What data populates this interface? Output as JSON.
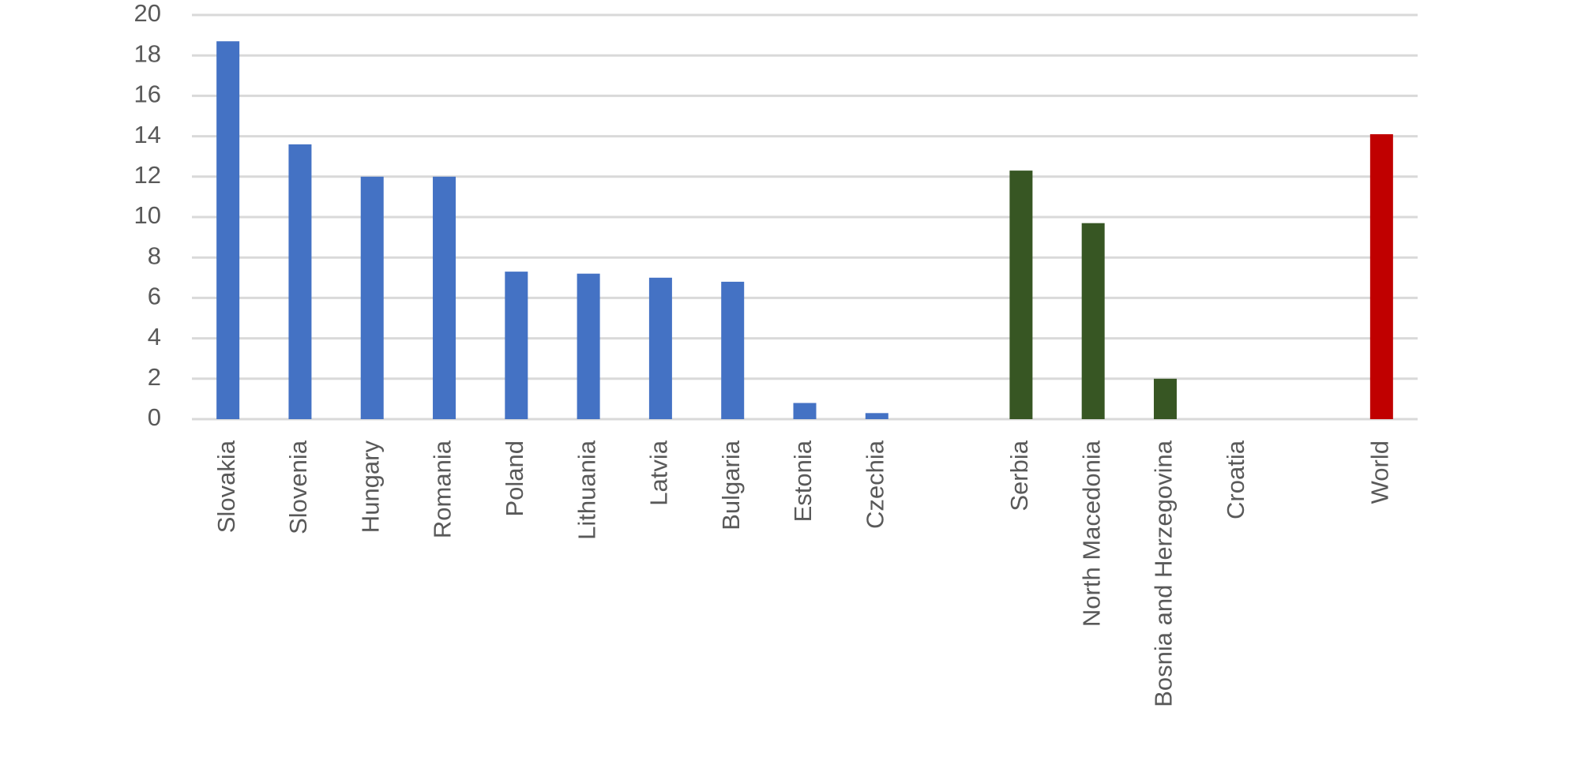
{
  "chart_data": {
    "type": "bar",
    "categories": [
      "Slovakia",
      "Slovenia",
      "Hungary",
      "Romania",
      "Poland",
      "Lithuania",
      "Latvia",
      "Bulgaria",
      "Estonia",
      "Czechia",
      null,
      "Serbia",
      "North Macedonia",
      "Bosnia and Herzegovina",
      "Croatia",
      null,
      "World"
    ],
    "values": [
      18.7,
      13.6,
      12.0,
      12.0,
      7.3,
      7.2,
      7.0,
      6.8,
      0.8,
      0.3,
      null,
      12.3,
      9.7,
      2.0,
      0,
      null,
      14.1
    ],
    "colors": [
      "#4472c4",
      "#4472c4",
      "#4472c4",
      "#4472c4",
      "#4472c4",
      "#4472c4",
      "#4472c4",
      "#4472c4",
      "#4472c4",
      "#4472c4",
      null,
      "#375623",
      "#375623",
      "#375623",
      "#375623",
      null,
      "#c00000"
    ],
    "ylim": [
      0,
      20
    ],
    "yticks": [
      0,
      2,
      4,
      6,
      8,
      10,
      12,
      14,
      16,
      18,
      20
    ],
    "grid": true
  }
}
